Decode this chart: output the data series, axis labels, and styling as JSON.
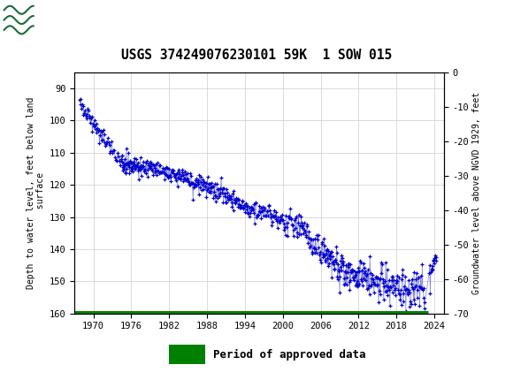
{
  "title": "USGS 374249076230101 59K  1 SOW 015",
  "ylabel_left": "Depth to water level, feet below land\n surface",
  "ylabel_right": "Groundwater level above NGVD 1929, feet",
  "ylim_left": [
    160,
    85
  ],
  "ylim_right": [
    -70,
    0
  ],
  "xlim": [
    1967.0,
    2025.5
  ],
  "xticks": [
    1970,
    1976,
    1982,
    1988,
    1994,
    2000,
    2006,
    2012,
    2018,
    2024
  ],
  "yticks_left": [
    90,
    100,
    110,
    120,
    130,
    140,
    150,
    160
  ],
  "yticks_right": [
    0,
    -10,
    -20,
    -30,
    -40,
    -50,
    -60,
    -70
  ],
  "background_color": "#ffffff",
  "header_color": "#1b6b3a",
  "plot_bg_color": "#ffffff",
  "grid_color": "#cccccc",
  "data_color": "#0000cc",
  "approved_color": "#008000",
  "legend_label": "Period of approved data",
  "approved_bar_xstart": 1967.0,
  "approved_bar_xend": 2023.0
}
